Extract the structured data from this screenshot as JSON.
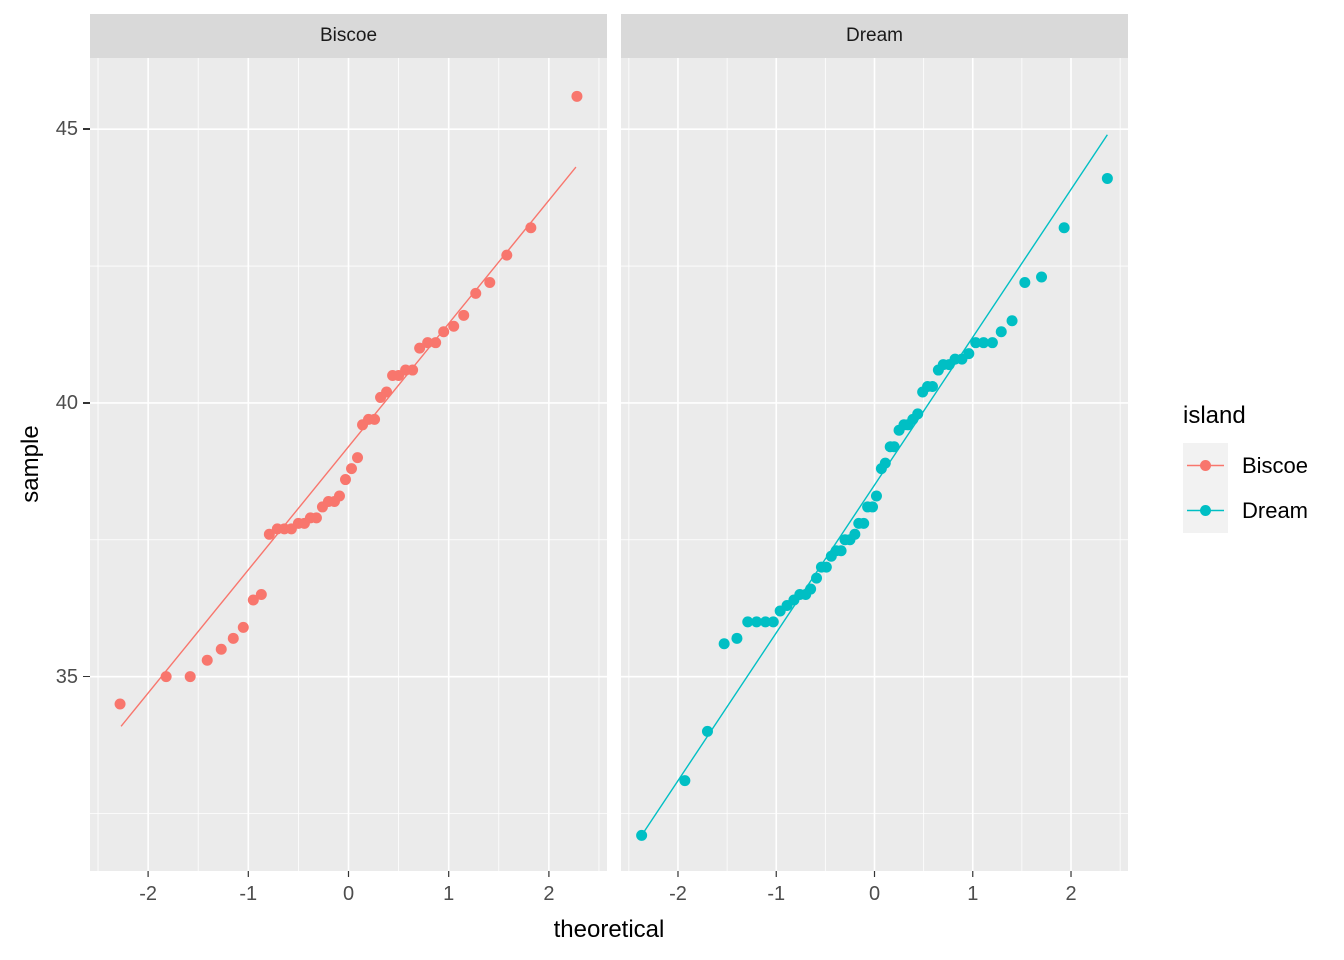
{
  "figure": {
    "kind": "faceted QQ plot (ggplot2 style)"
  },
  "colors": {
    "biscoe": "#F8766D",
    "dream": "#00BFC4",
    "panel_bg": "#EBEBEB",
    "strip_bg": "#D9D9D9",
    "grid": "#FFFFFF",
    "tick_label": "#4D4D4D",
    "tick_mark": "#333333",
    "axis_title": "#000000",
    "strip_text": "#1A1A1A",
    "legend_key_bg": "#F2F2F2"
  },
  "legend": {
    "title": "island",
    "items": [
      {
        "label": "Biscoe",
        "color": "#F8766D"
      },
      {
        "label": "Dream",
        "color": "#00BFC4"
      }
    ]
  },
  "chart_data": {
    "type": "scatter",
    "subtype": "qq_plot",
    "title": "",
    "xlabel": "theoretical",
    "ylabel": "sample",
    "xlim": [
      -2.58,
      2.58
    ],
    "ylim": [
      31.45,
      46.3
    ],
    "x_ticks": [
      -2,
      -1,
      0,
      1,
      2
    ],
    "x_tick_labels": [
      "-2",
      "-1",
      "0",
      "1",
      "2"
    ],
    "x_minor_ticks": [
      -2.5,
      -1.5,
      -0.5,
      0.5,
      1.5,
      2.5
    ],
    "y_ticks": [
      35,
      40,
      45
    ],
    "y_tick_labels": [
      "35",
      "40",
      "45"
    ],
    "y_minor_ticks": [
      32.5,
      37.5,
      42.5
    ],
    "grid": true,
    "legend_position": "right",
    "facets": [
      {
        "label": "Biscoe",
        "color": "#F8766D",
        "n": 44,
        "theoretical": [
          -2.28,
          -1.82,
          -1.58,
          -1.41,
          -1.27,
          -1.15,
          -1.05,
          -0.95,
          -0.87,
          -0.79,
          -0.71,
          -0.64,
          -0.57,
          -0.5,
          -0.44,
          -0.38,
          -0.32,
          -0.26,
          -0.2,
          -0.14,
          -0.09,
          -0.03,
          0.03,
          0.09,
          0.14,
          0.2,
          0.26,
          0.32,
          0.38,
          0.44,
          0.5,
          0.57,
          0.64,
          0.71,
          0.79,
          0.87,
          0.95,
          1.05,
          1.15,
          1.27,
          1.41,
          1.58,
          1.82,
          2.28
        ],
        "sample": [
          34.5,
          35.0,
          35.0,
          35.3,
          35.5,
          35.7,
          35.9,
          36.4,
          36.5,
          37.6,
          37.7,
          37.7,
          37.7,
          37.8,
          37.8,
          37.9,
          37.9,
          38.1,
          38.2,
          38.2,
          38.3,
          38.6,
          38.8,
          39.0,
          39.6,
          39.7,
          39.7,
          40.1,
          40.2,
          40.5,
          40.5,
          40.6,
          40.6,
          41.0,
          41.1,
          41.1,
          41.3,
          41.4,
          41.6,
          42.0,
          42.2,
          42.7,
          43.2,
          45.6
        ],
        "qq_line": {
          "slope": 2.25,
          "intercept": 39.2,
          "x_start": -2.27,
          "x_end": 2.27
        }
      },
      {
        "label": "Dream",
        "color": "#00BFC4",
        "n": 56,
        "theoretical": [
          -2.37,
          -1.93,
          -1.7,
          -1.53,
          -1.4,
          -1.29,
          -1.2,
          -1.11,
          -1.03,
          -0.96,
          -0.89,
          -0.82,
          -0.76,
          -0.7,
          -0.65,
          -0.59,
          -0.54,
          -0.49,
          -0.44,
          -0.39,
          -0.34,
          -0.3,
          -0.25,
          -0.2,
          -0.16,
          -0.11,
          -0.07,
          -0.02,
          0.02,
          0.07,
          0.11,
          0.16,
          0.2,
          0.25,
          0.3,
          0.34,
          0.39,
          0.44,
          0.49,
          0.54,
          0.59,
          0.65,
          0.7,
          0.76,
          0.82,
          0.89,
          0.96,
          1.03,
          1.11,
          1.2,
          1.29,
          1.4,
          1.53,
          1.7,
          1.93,
          2.37
        ],
        "sample": [
          32.1,
          33.1,
          34.0,
          35.6,
          35.7,
          36.0,
          36.0,
          36.0,
          36.0,
          36.2,
          36.3,
          36.4,
          36.5,
          36.5,
          36.6,
          36.8,
          37.0,
          37.0,
          37.2,
          37.3,
          37.3,
          37.5,
          37.5,
          37.6,
          37.8,
          37.8,
          38.1,
          38.1,
          38.3,
          38.8,
          38.9,
          39.2,
          39.2,
          39.5,
          39.6,
          39.6,
          39.7,
          39.8,
          40.2,
          40.3,
          40.3,
          40.6,
          40.7,
          40.7,
          40.8,
          40.8,
          40.9,
          41.1,
          41.1,
          41.1,
          41.3,
          41.5,
          42.2,
          42.3,
          43.2,
          44.1
        ],
        "qq_line": {
          "slope": 2.7,
          "intercept": 38.5,
          "x_start": -2.37,
          "x_end": 2.37
        }
      }
    ]
  }
}
